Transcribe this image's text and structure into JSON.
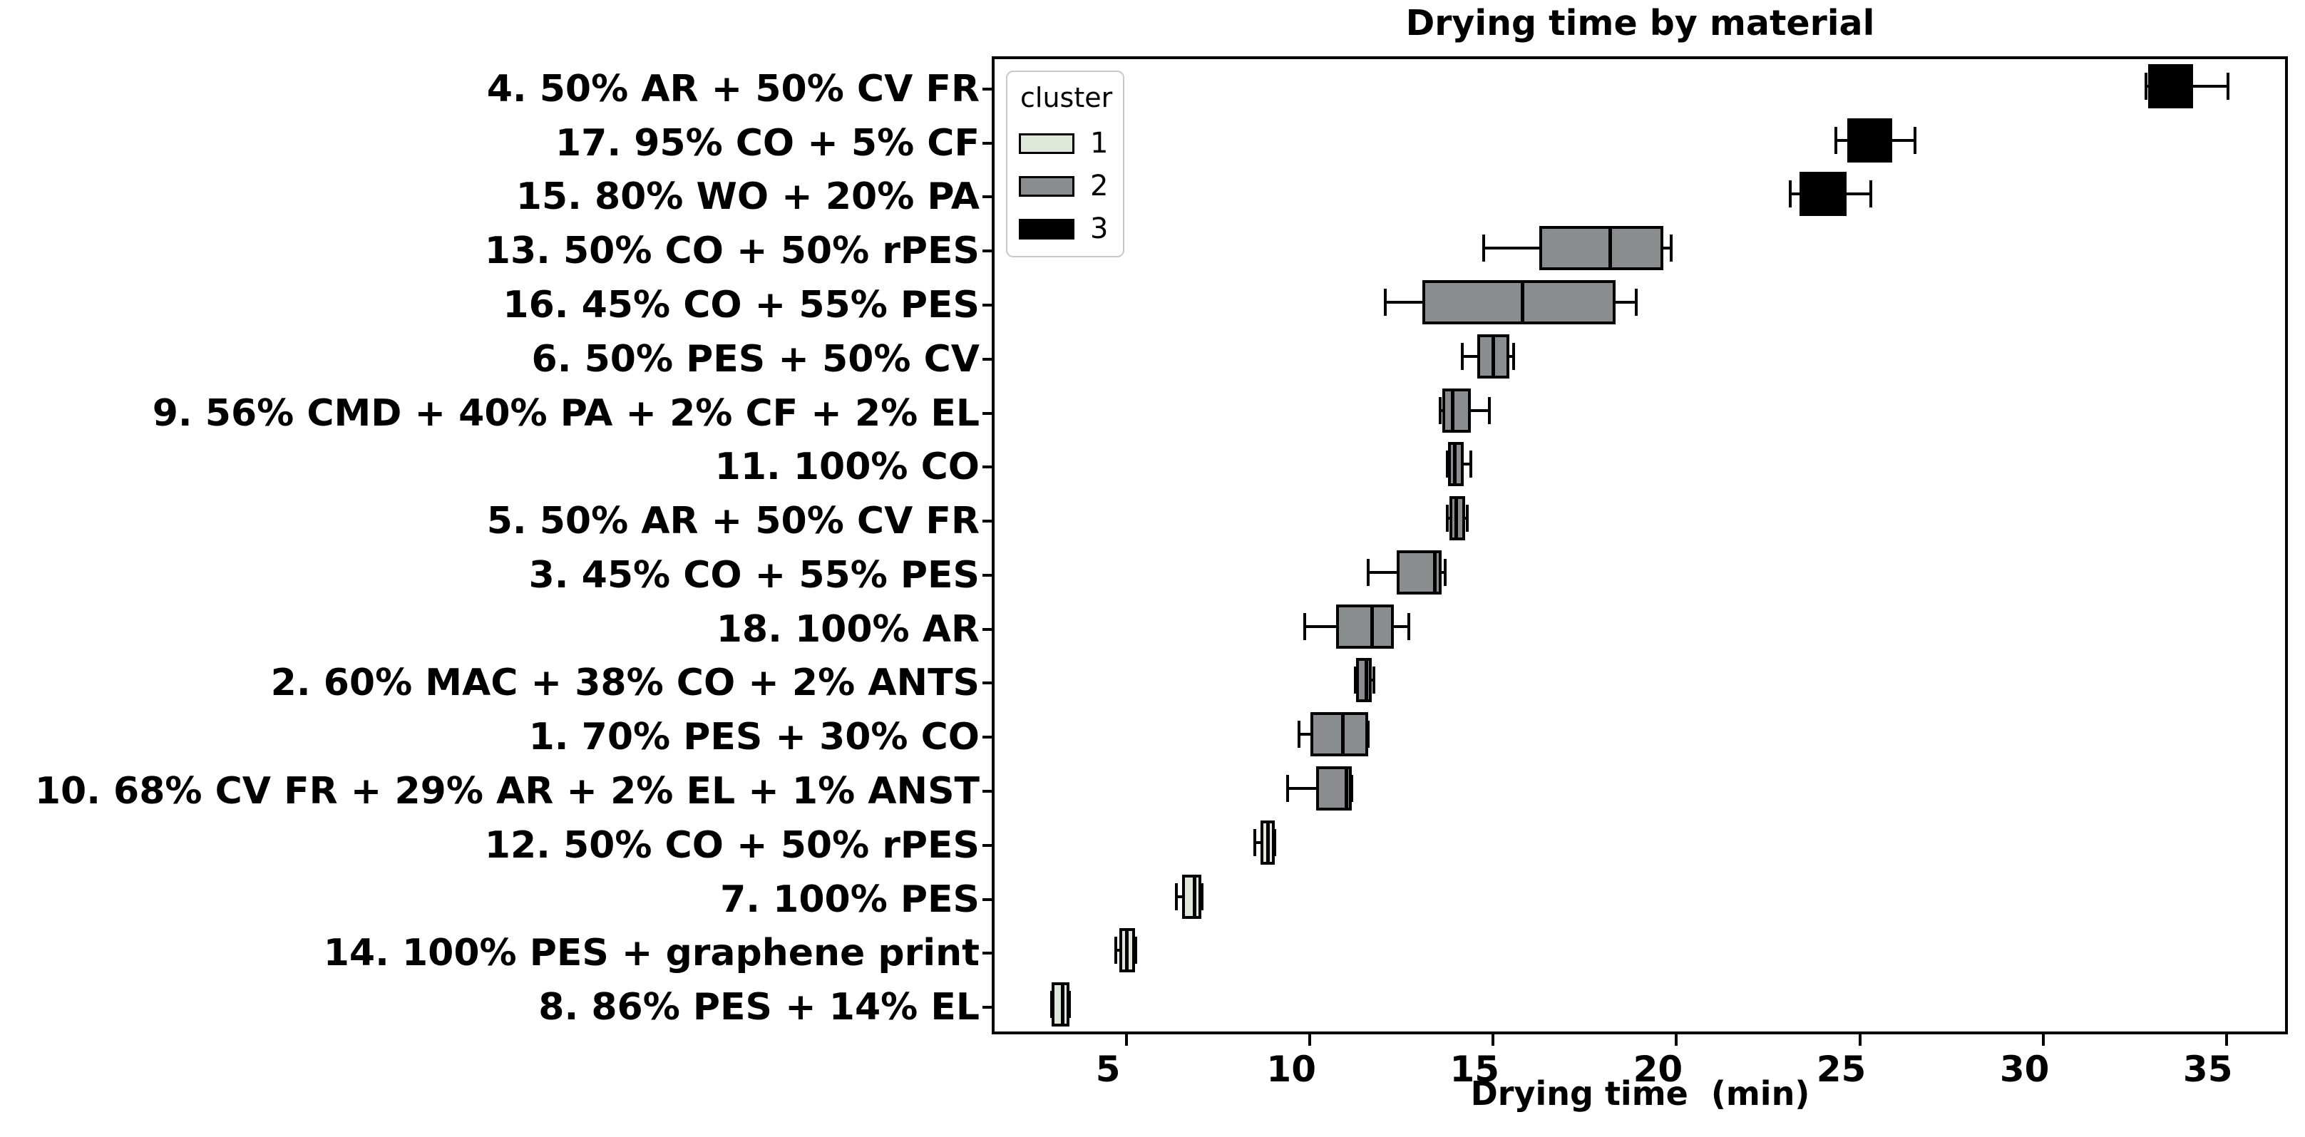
{
  "chart_data": {
    "type": "boxplot",
    "orientation": "horizontal",
    "title": "Drying time by material",
    "xlabel": "Drying time  (min)",
    "ylabel": "",
    "xlim": [
      1.4,
      36.6
    ],
    "xticks": [
      5,
      10,
      15,
      20,
      25,
      30,
      35
    ],
    "grid": false,
    "background": "#ffffff",
    "legend": {
      "title": "cluster",
      "position": "upper-left",
      "entries": [
        {
          "label": "1",
          "color": "#dfe8da"
        },
        {
          "label": "2",
          "color": "#8a8d8e"
        },
        {
          "label": "3",
          "color": "#000000"
        }
      ]
    },
    "rows": [
      {
        "label": "4. 50% AR + 50% CV FR",
        "cluster": 3,
        "whislo": 32.8,
        "q1": 32.9,
        "med": 33.45,
        "q3": 34.05,
        "whishi": 35.05
      },
      {
        "label": "17. 95% CO + 5% CF",
        "cluster": 3,
        "whislo": 24.35,
        "q1": 24.7,
        "med": 25.3,
        "q3": 25.85,
        "whishi": 26.5
      },
      {
        "label": "15. 80% WO + 20% PA",
        "cluster": 3,
        "whislo": 23.1,
        "q1": 23.4,
        "med": 24.0,
        "q3": 24.6,
        "whishi": 25.3
      },
      {
        "label": "13. 50% CO + 50% rPES",
        "cluster": 2,
        "whislo": 14.75,
        "q1": 16.3,
        "med": 18.2,
        "q3": 19.6,
        "whishi": 19.85
      },
      {
        "label": "16. 45% CO + 55% PES",
        "cluster": 2,
        "whislo": 12.05,
        "q1": 13.1,
        "med": 15.8,
        "q3": 18.3,
        "whishi": 18.9
      },
      {
        "label": "6. 50% PES + 50% CV",
        "cluster": 2,
        "whislo": 14.15,
        "q1": 14.6,
        "med": 15.0,
        "q3": 15.4,
        "whishi": 15.55
      },
      {
        "label": "9. 56% CMD + 40% PA + 2% CF + 2% EL",
        "cluster": 2,
        "whislo": 13.55,
        "q1": 13.65,
        "med": 13.9,
        "q3": 14.35,
        "whishi": 14.9
      },
      {
        "label": "11. 100% CO",
        "cluster": 2,
        "whislo": 13.75,
        "q1": 13.8,
        "med": 13.95,
        "q3": 14.15,
        "whishi": 14.4
      },
      {
        "label": "5. 50% AR + 50% CV FR",
        "cluster": 2,
        "whislo": 13.75,
        "q1": 13.85,
        "med": 14.0,
        "q3": 14.2,
        "whishi": 14.3
      },
      {
        "label": "3. 45% CO + 55% PES",
        "cluster": 2,
        "whislo": 11.6,
        "q1": 12.4,
        "med": 13.4,
        "q3": 13.55,
        "whishi": 13.7
      },
      {
        "label": "18. 100% AR",
        "cluster": 2,
        "whislo": 9.85,
        "q1": 10.75,
        "med": 11.7,
        "q3": 12.25,
        "whishi": 12.7
      },
      {
        "label": "2. 60% MAC + 38% CO + 2% ANTS",
        "cluster": 2,
        "whislo": 11.25,
        "q1": 11.3,
        "med": 11.55,
        "q3": 11.65,
        "whishi": 11.75
      },
      {
        "label": "1. 70% PES + 30% CO",
        "cluster": 2,
        "whislo": 9.7,
        "q1": 10.05,
        "med": 10.9,
        "q3": 11.55,
        "whishi": 11.6
      },
      {
        "label": "10. 68% CV FR + 29% AR + 2% EL + 1% ANST",
        "cluster": 2,
        "whislo": 9.4,
        "q1": 10.2,
        "med": 11.0,
        "q3": 11.1,
        "whishi": 11.15
      },
      {
        "label": "12. 50% CO + 50% rPES",
        "cluster": 1,
        "whislo": 8.5,
        "q1": 8.7,
        "med": 8.85,
        "q3": 9.0,
        "whishi": 9.05
      },
      {
        "label": "7. 100% PES",
        "cluster": 1,
        "whislo": 6.35,
        "q1": 6.55,
        "med": 6.85,
        "q3": 7.0,
        "whishi": 7.05
      },
      {
        "label": "14. 100% PES + graphene print",
        "cluster": 1,
        "whislo": 4.7,
        "q1": 4.85,
        "med": 5.0,
        "q3": 5.2,
        "whishi": 5.25
      },
      {
        "label": "8. 86% PES + 14% EL",
        "cluster": 1,
        "whislo": 2.95,
        "q1": 3.0,
        "med": 3.25,
        "q3": 3.4,
        "whishi": 3.45
      }
    ]
  }
}
